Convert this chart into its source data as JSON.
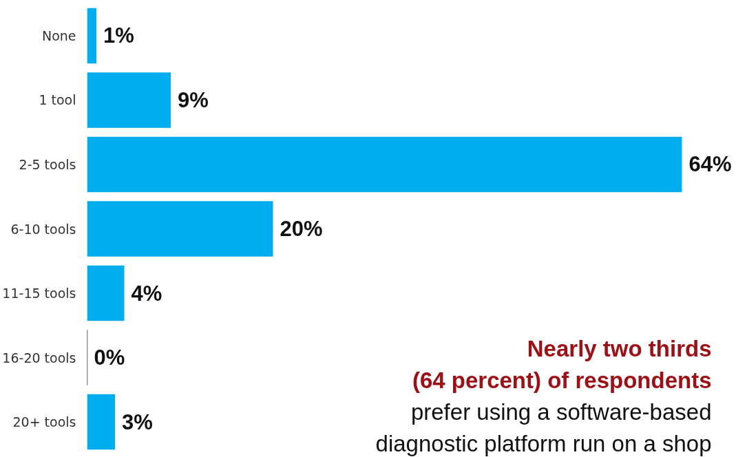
{
  "chart_data": {
    "type": "bar",
    "orientation": "horizontal",
    "categories": [
      "None",
      "1 tool",
      "2-5 tools",
      "6-10 tools",
      "11-15 tools",
      "16-20 tools",
      "20+ tools"
    ],
    "values": [
      1,
      9,
      64,
      20,
      4,
      0,
      3
    ],
    "value_labels": [
      "1%",
      "9%",
      "64%",
      "20%",
      "4%",
      "0%",
      "3%"
    ],
    "color": "#00aeef",
    "annotations": [
      "Nearly two thirds",
      "(64 percent) of respondents",
      "prefer using a software-based",
      "diagnostic platform run on a shop"
    ],
    "grid": false
  }
}
